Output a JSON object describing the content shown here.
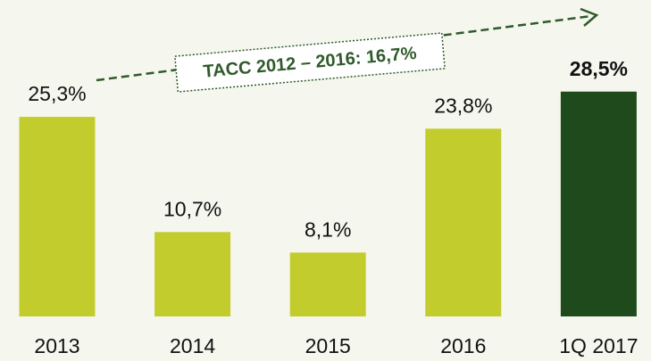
{
  "chart_data": {
    "type": "bar",
    "categories": [
      "2013",
      "2014",
      "2015",
      "2016",
      "1Q 2017"
    ],
    "values": [
      25.3,
      10.7,
      8.1,
      23.8,
      28.5
    ],
    "value_labels": [
      "25,3%",
      "10,7%",
      "8,1%",
      "23,8%",
      "28,5%"
    ],
    "colors": [
      "#c3cc2d",
      "#c3cc2d",
      "#c3cc2d",
      "#c3cc2d",
      "#1f4a1b"
    ],
    "annotation": "TACC 2012 – 2016: 16,7%"
  }
}
